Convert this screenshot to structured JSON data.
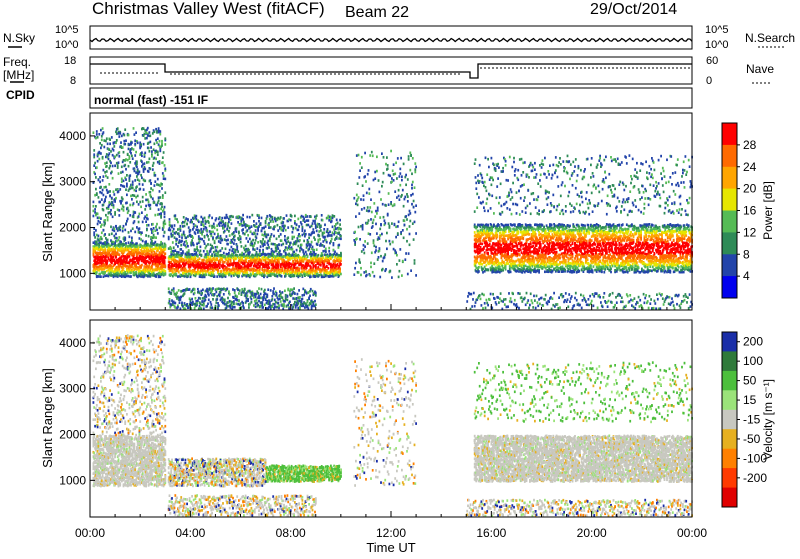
{
  "header": {
    "title": "Christmas Valley West (fitACF)",
    "beam": "Beam 22",
    "date": "29/Oct/2014"
  },
  "status_rows": {
    "nsky_label": "N.Sky",
    "nsky_ticks": [
      "10^5",
      "10^0"
    ],
    "nsearch_label": "N.Search",
    "nsearch_ticks": [
      "10^5",
      "10^0"
    ],
    "freq_label": "Freq.",
    "freq_unit": "[MHz]",
    "freq_ticks": [
      "18",
      "8"
    ],
    "nave_label": "Nave",
    "nave_ticks": [
      "60",
      "0"
    ],
    "cpid_label": "CPID",
    "cpid_text": "normal (fast) -151 IF"
  },
  "chart_data": [
    {
      "type": "heatmap",
      "name": "power-panel",
      "ylabel": "Slant Range [km]",
      "xlabel": "",
      "x_ticks": [
        "00:00",
        "04:00",
        "08:00",
        "12:00",
        "16:00",
        "20:00",
        "00:00"
      ],
      "y_ticks": [
        1000,
        2000,
        3000,
        4000
      ],
      "ylim": [
        200,
        4500
      ],
      "xlim_hours": [
        0,
        24
      ],
      "colorbar": {
        "label": "Power [dB]",
        "ticks": [
          "28",
          "24",
          "20",
          "16",
          "12",
          "8",
          "4"
        ],
        "colors": [
          "#ff0000",
          "#ff6a00",
          "#ffa500",
          "#e6e600",
          "#55bb55",
          "#2e8b57",
          "#2244aa",
          "#0000ee"
        ]
      },
      "features": [
        {
          "description": "main ionospheric band",
          "x_hours": [
            0.1,
            3.0
          ],
          "range_km": [
            1000,
            1600
          ],
          "power_db": 28
        },
        {
          "description": "band after sunrise",
          "x_hours": [
            3.2,
            10.0
          ],
          "range_km": [
            1000,
            1400
          ],
          "power_db": 16
        },
        {
          "description": "afternoon-evening band",
          "x_hours": [
            15.5,
            24.0
          ],
          "range_km": [
            1100,
            2000
          ],
          "power_db": 24
        }
      ]
    },
    {
      "type": "heatmap",
      "name": "velocity-panel",
      "ylabel": "Slant Range [km]",
      "xlabel": "Time UT",
      "x_ticks": [
        "00:00",
        "04:00",
        "08:00",
        "12:00",
        "16:00",
        "20:00",
        "00:00"
      ],
      "y_ticks": [
        1000,
        2000,
        3000,
        4000
      ],
      "ylim": [
        200,
        4500
      ],
      "xlim_hours": [
        0,
        24
      ],
      "colorbar": {
        "label": "Velocity [m s⁻¹]",
        "ticks": [
          "200",
          "100",
          "50",
          "15",
          "-15",
          "-50",
          "-100",
          "-200"
        ],
        "colors": [
          "#1a2ea8",
          "#2f7a3a",
          "#4cbf3c",
          "#9be37a",
          "#c8c8c0",
          "#e6b020",
          "#ff8000",
          "#ff3a00",
          "#e00000"
        ]
      },
      "features": [
        {
          "description": "ground scatter band",
          "x_hours": [
            0.1,
            3.0
          ],
          "range_km": [
            900,
            2000
          ],
          "velocity": 0
        },
        {
          "description": "green flow band",
          "x_hours": [
            7.0,
            10.0
          ],
          "range_km": [
            1000,
            1350
          ],
          "velocity": 50
        },
        {
          "description": "ground scatter afternoon",
          "x_hours": [
            15.5,
            24.0
          ],
          "range_km": [
            1000,
            2000
          ],
          "velocity": 0
        }
      ]
    }
  ]
}
